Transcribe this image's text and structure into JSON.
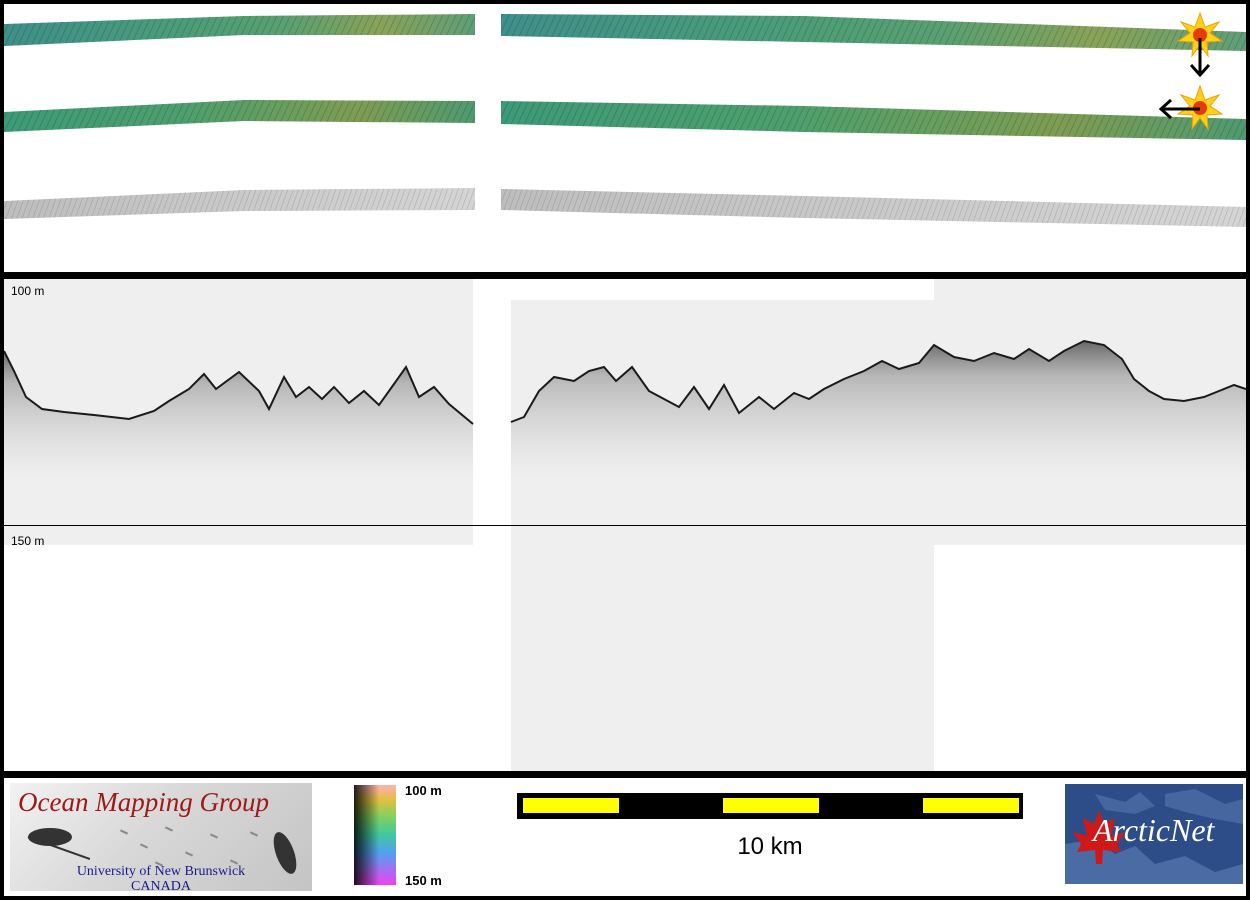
{
  "profile": {
    "depth_top_label": "100 m",
    "depth_bottom_label": "150 m"
  },
  "legend": {
    "logo": {
      "title": "Ocean Mapping Group",
      "university": "University of New Brunswick",
      "country": "CANADA"
    },
    "colorbar": {
      "top_label": "100 m",
      "bottom_label": "150 m"
    },
    "scale": {
      "label": "10 km",
      "bar_color": "#ffff00"
    },
    "partner_logo": {
      "text": "ArcticNet",
      "leaf_color": "#d01818"
    }
  },
  "markers": {
    "icon": "star-burst-icon",
    "arrows": [
      "arrow-down-icon",
      "arrow-left-icon"
    ]
  }
}
